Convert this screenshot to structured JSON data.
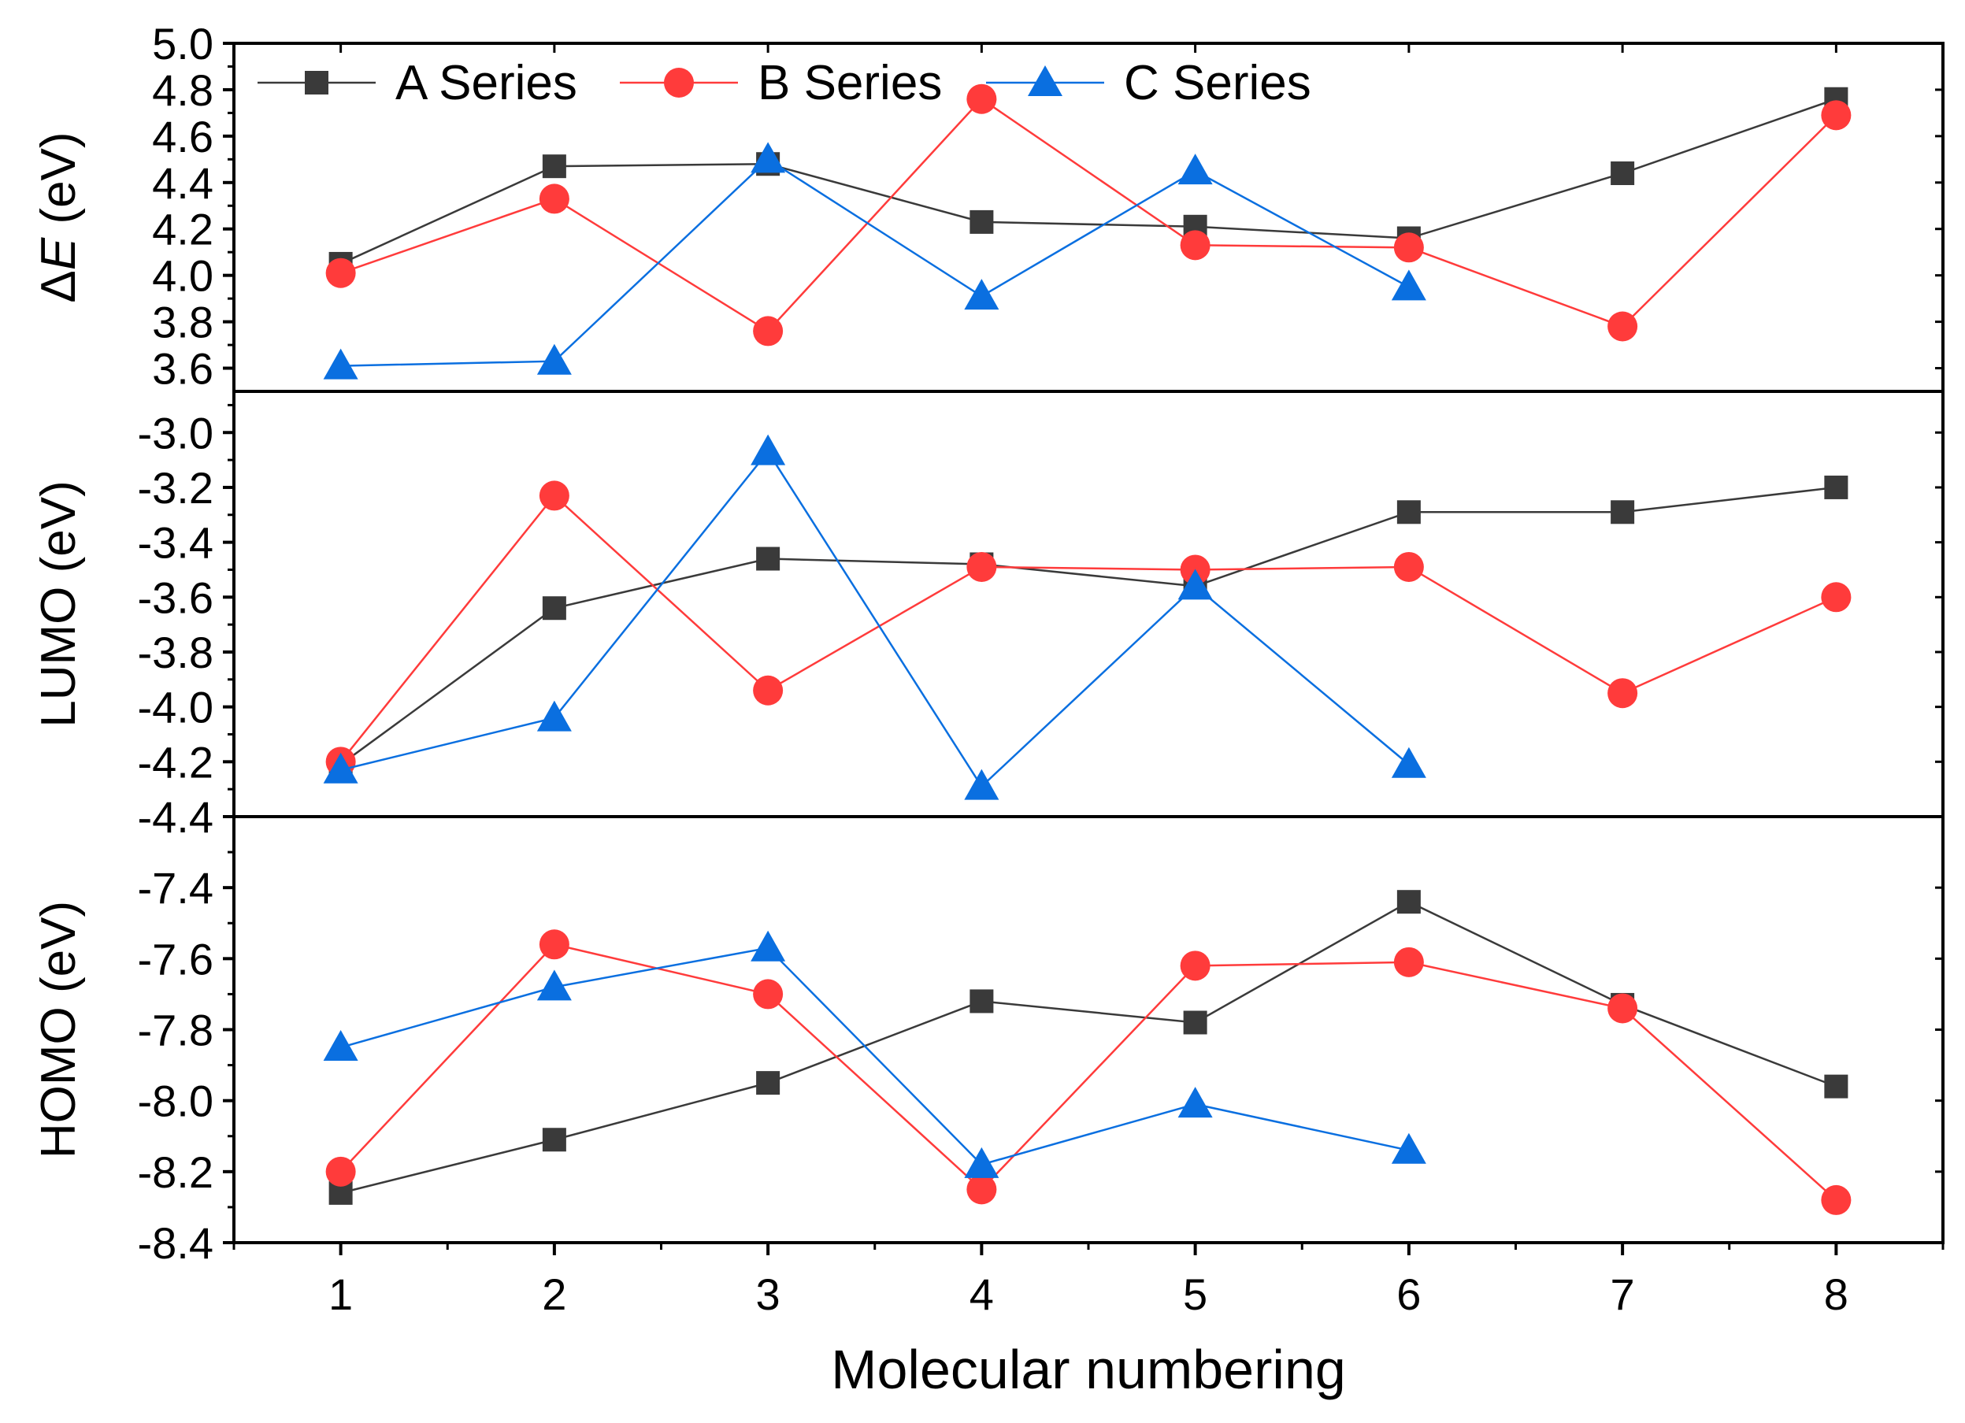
{
  "chart_data": {
    "type": "line",
    "x": [
      1,
      2,
      3,
      4,
      5,
      6,
      7,
      8
    ],
    "xlabel": "Molecular numbering",
    "xticks": [
      "1",
      "2",
      "3",
      "4",
      "5",
      "6",
      "7",
      "8"
    ],
    "xlim": [
      0.5,
      8.5
    ],
    "legend": {
      "placement": "top-left",
      "entries": [
        "A Series",
        "B Series",
        "C Series"
      ]
    },
    "series_styles": [
      {
        "name": "A Series",
        "color": "#3a3a3a",
        "marker": "square"
      },
      {
        "name": "B Series",
        "color": "#ff3b3b",
        "marker": "circle"
      },
      {
        "name": "C Series",
        "color": "#0a6fe0",
        "marker": "triangle"
      }
    ],
    "panels": [
      {
        "id": "delta-e",
        "ylabel_prefix": "Δ",
        "ylabel_italic": "E",
        "ylabel_suffix": " (eV)",
        "ylim": [
          3.5,
          5.0
        ],
        "yticks": [
          "3.6",
          "3.8",
          "4.0",
          "4.2",
          "4.4",
          "4.6",
          "4.8",
          "5.0"
        ],
        "series": [
          {
            "name": "A Series",
            "values": [
              4.05,
              4.47,
              4.48,
              4.23,
              4.21,
              4.16,
              4.44,
              4.76
            ]
          },
          {
            "name": "B Series",
            "values": [
              4.01,
              4.33,
              3.76,
              4.76,
              4.13,
              4.12,
              3.78,
              4.69
            ]
          },
          {
            "name": "C Series",
            "values": [
              3.61,
              3.63,
              4.5,
              3.91,
              4.45,
              3.95,
              null,
              null
            ]
          }
        ]
      },
      {
        "id": "lumo",
        "ylabel": "LUMO (eV)",
        "ylim": [
          -4.4,
          -2.85
        ],
        "yticks": [
          "-4.4",
          "-4.2",
          "-4.0",
          "-3.8",
          "-3.6",
          "-3.4",
          "-3.2",
          "-3.0"
        ],
        "series": [
          {
            "name": "A Series",
            "values": [
              -4.21,
              -3.64,
              -3.46,
              -3.48,
              -3.56,
              -3.29,
              -3.29,
              -3.2
            ]
          },
          {
            "name": "B Series",
            "values": [
              -4.2,
              -3.23,
              -3.94,
              -3.49,
              -3.5,
              -3.49,
              -3.95,
              -3.6
            ]
          },
          {
            "name": "C Series",
            "values": [
              -4.23,
              -4.04,
              -3.07,
              -4.29,
              -3.56,
              -4.21,
              null,
              null
            ]
          }
        ]
      },
      {
        "id": "homo",
        "ylabel": "HOMO (eV)",
        "ylim": [
          -8.4,
          -7.2
        ],
        "yticks": [
          "-8.4",
          "-8.2",
          "-8.0",
          "-7.8",
          "-7.6",
          "-7.4"
        ],
        "series": [
          {
            "name": "A Series",
            "values": [
              -8.26,
              -8.11,
              -7.95,
              -7.72,
              -7.78,
              -7.44,
              -7.73,
              -7.96
            ]
          },
          {
            "name": "B Series",
            "values": [
              -8.2,
              -7.56,
              -7.7,
              -8.25,
              -7.62,
              -7.61,
              -7.74,
              -8.28
            ]
          },
          {
            "name": "C Series",
            "values": [
              -7.85,
              -7.68,
              -7.57,
              -8.18,
              -8.01,
              -8.14,
              null,
              null
            ]
          }
        ]
      }
    ]
  }
}
